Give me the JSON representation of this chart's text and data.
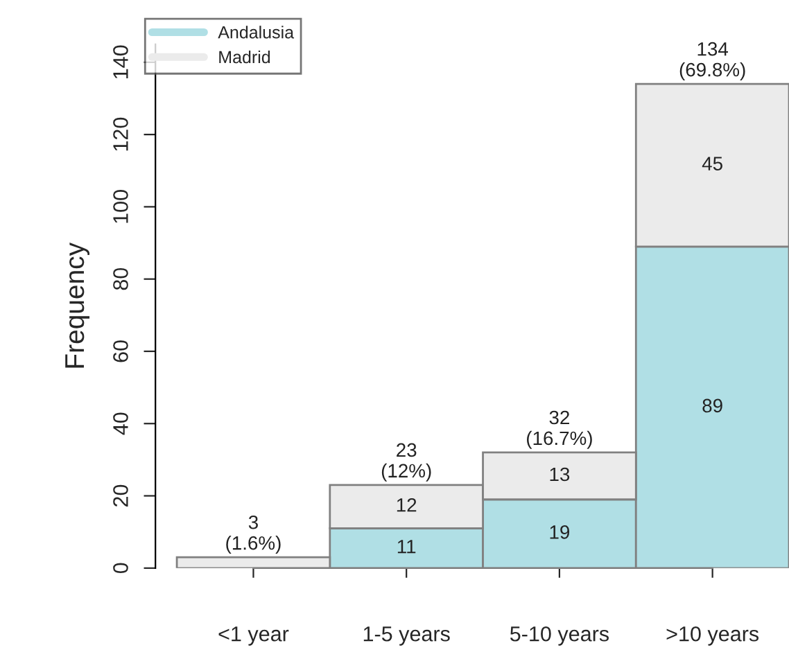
{
  "chart_data": {
    "type": "bar",
    "stacked": true,
    "ylabel": "Frequency",
    "categories": [
      "<1 year",
      "1-5 years",
      "5-10 years",
      ">10 years"
    ],
    "series": [
      {
        "name": "Andalusia",
        "color": "#b0dfe5",
        "values": [
          0,
          11,
          19,
          89
        ],
        "value_labels": [
          null,
          "11",
          "19",
          "89"
        ]
      },
      {
        "name": "Madrid",
        "color": "#ebebeb",
        "values": [
          3,
          12,
          13,
          45
        ],
        "value_labels": [
          null,
          "12",
          "13",
          "45"
        ]
      }
    ],
    "totals": [
      "3\n(1.6%)",
      "23\n(12%)",
      "32\n(16.7%)",
      "134\n(69.8%)"
    ],
    "ylim": [
      0,
      145
    ],
    "yticks": [
      0,
      20,
      40,
      60,
      80,
      100,
      120,
      140
    ],
    "grid": false,
    "legend": "top left"
  }
}
